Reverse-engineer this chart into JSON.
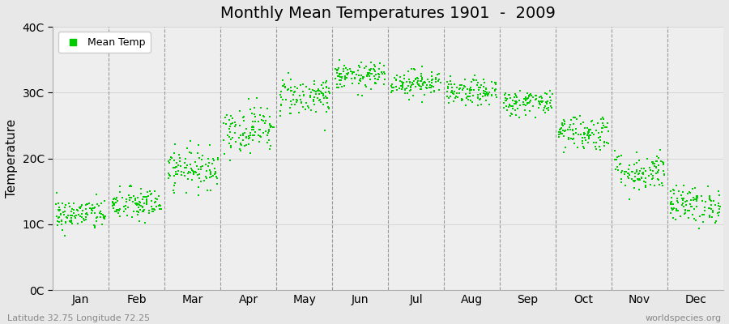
{
  "title": "Monthly Mean Temperatures 1901  -  2009",
  "ylabel": "Temperature",
  "ytick_labels": [
    "0C",
    "10C",
    "20C",
    "30C",
    "40C"
  ],
  "ytick_values": [
    0,
    10,
    20,
    30,
    40
  ],
  "ylim": [
    0,
    40
  ],
  "months": [
    "Jan",
    "Feb",
    "Mar",
    "Apr",
    "May",
    "Jun",
    "Jul",
    "Aug",
    "Sep",
    "Oct",
    "Nov",
    "Dec"
  ],
  "xlim": [
    0,
    12
  ],
  "background_color": "#e8e8e8",
  "plot_bg_color": "#eeeeee",
  "scatter_color": "#00cc00",
  "marker_size": 3,
  "legend_label": "Mean Temp",
  "watermark_left": "Latitude 32.75 Longitude 72.25",
  "watermark_right": "worldspecies.org",
  "monthly_mean": [
    11.5,
    13.0,
    18.5,
    24.5,
    29.5,
    32.5,
    31.5,
    30.0,
    28.5,
    24.0,
    18.0,
    13.0
  ],
  "monthly_std": [
    1.2,
    1.3,
    1.5,
    1.8,
    1.5,
    1.0,
    1.0,
    1.0,
    1.0,
    1.4,
    1.5,
    1.4
  ],
  "n_years": 109,
  "seed": 42,
  "dashed_line_color": "#999999"
}
